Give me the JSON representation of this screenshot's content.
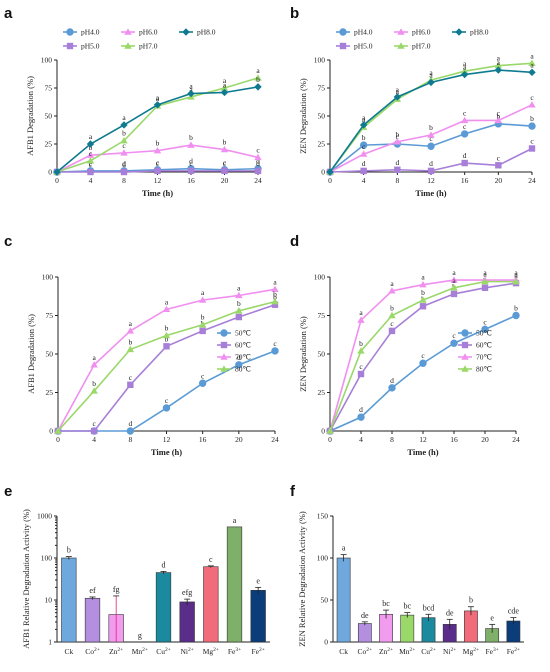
{
  "colors": {
    "pH4.0": "#5b9bd5",
    "pH5.0": "#a77fd8",
    "pH6.0": "#f08ff0",
    "pH7.0": "#9ad86a",
    "pH8.0": "#0f7a8f",
    "50C": "#5b9bd5",
    "60C": "#a77fd8",
    "70C": "#f08ff0",
    "80C": "#9ad86a"
  },
  "chart_data": [
    {
      "panel": "a",
      "type": "line",
      "ylabel": "AFB1 Degradation (%)",
      "xlabel": "Time (h)",
      "x": [
        0,
        4,
        8,
        12,
        16,
        20,
        24
      ],
      "xlim": [
        0,
        24
      ],
      "ylim": [
        0,
        100
      ],
      "xticks": [
        "0",
        "4",
        "8",
        "12",
        "16",
        "20",
        "24"
      ],
      "yticks": [
        "0",
        "25",
        "50",
        "75",
        "100"
      ],
      "legend": "top",
      "series": [
        {
          "name": "pH4.0",
          "color_key": "pH4.0",
          "marker": "circle",
          "values": [
            0,
            1,
            1,
            2,
            3,
            2,
            3
          ],
          "letters": [
            "",
            "c",
            "d",
            "c",
            "d",
            "c",
            "d"
          ]
        },
        {
          "name": "pH5.0",
          "color_key": "pH5.0",
          "marker": "square",
          "values": [
            0,
            0,
            0,
            1,
            1,
            1,
            1
          ],
          "letters": [
            "",
            "c",
            "d",
            "c",
            "c",
            "c",
            "d"
          ]
        },
        {
          "name": "pH6.0",
          "color_key": "pH6.0",
          "marker": "triangle",
          "values": [
            0,
            15,
            17,
            19,
            24,
            20,
            13
          ],
          "letters": [
            "",
            "b",
            "c",
            "b",
            "b",
            "b",
            "c"
          ]
        },
        {
          "name": "pH7.0",
          "color_key": "pH7.0",
          "marker": "triangle",
          "values": [
            0,
            10,
            28,
            59,
            67,
            75,
            84
          ],
          "letters": [
            "",
            "c",
            "b",
            "a",
            "a",
            "a",
            "a"
          ]
        },
        {
          "name": "pH8.0",
          "color_key": "pH8.0",
          "marker": "diamond",
          "values": [
            0,
            25,
            42,
            60,
            70,
            71,
            76
          ],
          "letters": [
            "",
            "a",
            "a",
            "a",
            "a",
            "a",
            "b"
          ]
        }
      ]
    },
    {
      "panel": "b",
      "type": "line",
      "ylabel": "ZEN Degradation (%)",
      "xlabel": "Time (h)",
      "x": [
        0,
        4,
        8,
        12,
        16,
        20,
        24
      ],
      "xlim": [
        0,
        24
      ],
      "ylim": [
        0,
        100
      ],
      "xticks": [
        "0",
        "4",
        "8",
        "12",
        "16",
        "20",
        "24"
      ],
      "yticks": [
        "0",
        "25",
        "50",
        "75",
        "100"
      ],
      "legend": "top",
      "series": [
        {
          "name": "pH4.0",
          "color_key": "pH4.0",
          "marker": "circle",
          "values": [
            0,
            24,
            25,
            23,
            34,
            43,
            41
          ],
          "letters": [
            "",
            "b",
            "c",
            "c",
            "c",
            "b",
            "b"
          ]
        },
        {
          "name": "pH5.0",
          "color_key": "pH5.0",
          "marker": "square",
          "values": [
            0,
            1,
            2,
            1,
            8,
            6,
            21
          ],
          "letters": [
            "",
            "d",
            "d",
            "d",
            "d",
            "c",
            "c"
          ]
        },
        {
          "name": "pH6.0",
          "color_key": "pH6.0",
          "marker": "triangle",
          "values": [
            0,
            16,
            27,
            33,
            46,
            46,
            60
          ],
          "letters": [
            "",
            "c",
            "b",
            "b",
            "c",
            "c",
            "c"
          ]
        },
        {
          "name": "pH7.0",
          "color_key": "pH7.0",
          "marker": "triangle",
          "values": [
            0,
            40,
            65,
            82,
            90,
            95,
            97
          ],
          "letters": [
            "",
            "a",
            "a",
            "a",
            "a",
            "a",
            "a"
          ]
        },
        {
          "name": "pH8.0",
          "color_key": "pH8.0",
          "marker": "diamond",
          "values": [
            0,
            42,
            67,
            80,
            87,
            91,
            89
          ],
          "letters": [
            "",
            "a",
            "a",
            "a",
            "a",
            "a",
            "a"
          ]
        }
      ]
    },
    {
      "panel": "c",
      "type": "line",
      "ylabel": "AFB1 Degradation (%)",
      "xlabel": "Time (h)",
      "x": [
        0,
        4,
        8,
        12,
        16,
        20,
        24
      ],
      "xlim": [
        0,
        24
      ],
      "ylim": [
        0,
        100
      ],
      "xticks": [
        "0",
        "4",
        "8",
        "12",
        "16",
        "20",
        "24"
      ],
      "yticks": [
        "0",
        "25",
        "50",
        "75",
        "100"
      ],
      "legend": "right",
      "series": [
        {
          "name": "50℃",
          "color_key": "50C",
          "marker": "circle",
          "values": [
            0,
            0,
            0,
            15,
            31,
            43,
            52
          ],
          "letters": [
            "",
            "",
            "d",
            "c",
            "c",
            "d",
            "c"
          ]
        },
        {
          "name": "60℃",
          "color_key": "60C",
          "marker": "square",
          "values": [
            0,
            0,
            30,
            55,
            65,
            74,
            82
          ],
          "letters": [
            "",
            "c",
            "c",
            "b",
            "b",
            "c",
            "b"
          ]
        },
        {
          "name": "70℃",
          "color_key": "70C",
          "marker": "triangle",
          "values": [
            0,
            43,
            65,
            79,
            85,
            88,
            92
          ],
          "letters": [
            "",
            "a",
            "a",
            "a",
            "a",
            "a",
            "a"
          ]
        },
        {
          "name": "80℃",
          "color_key": "80C",
          "marker": "triangle",
          "values": [
            0,
            26,
            53,
            62,
            69,
            78,
            84
          ],
          "letters": [
            "",
            "b",
            "b",
            "b",
            "b",
            "b",
            "b"
          ]
        }
      ]
    },
    {
      "panel": "d",
      "type": "line",
      "ylabel": "ZEN Degradation (%)",
      "xlabel": "Time (h)",
      "x": [
        0,
        4,
        8,
        12,
        16,
        20,
        24
      ],
      "xlim": [
        0,
        24
      ],
      "ylim": [
        0,
        100
      ],
      "xticks": [
        "0",
        "4",
        "8",
        "12",
        "16",
        "20",
        "24"
      ],
      "yticks": [
        "0",
        "25",
        "50",
        "75",
        "100"
      ],
      "legend": "right",
      "series": [
        {
          "name": "50℃",
          "color_key": "50C",
          "marker": "circle",
          "values": [
            0,
            9,
            28,
            44,
            57,
            66,
            75
          ],
          "letters": [
            "",
            "d",
            "d",
            "c",
            "c",
            "c",
            "b"
          ]
        },
        {
          "name": "60℃",
          "color_key": "60C",
          "marker": "square",
          "values": [
            0,
            37,
            65,
            81,
            89,
            93,
            96
          ],
          "letters": [
            "",
            "c",
            "c",
            "b",
            "b",
            "b",
            "a"
          ]
        },
        {
          "name": "70℃",
          "color_key": "70C",
          "marker": "triangle",
          "values": [
            0,
            72,
            91,
            95,
            98,
            98,
            98
          ],
          "letters": [
            "",
            "a",
            "a",
            "a",
            "a",
            "a",
            "a"
          ]
        },
        {
          "name": "80℃",
          "color_key": "80C",
          "marker": "triangle",
          "values": [
            0,
            52,
            75,
            85,
            93,
            97,
            97
          ],
          "letters": [
            "",
            "b",
            "b",
            "b",
            "a",
            "a",
            "a"
          ]
        }
      ]
    },
    {
      "panel": "e",
      "type": "bar",
      "scale": "log",
      "ylabel": "AFB1 Relative Degradation Activity (%)",
      "ylim": [
        1,
        1000
      ],
      "yticks": [
        "1",
        "10",
        "100",
        "1000"
      ],
      "categories": [
        "Ck",
        "Co2+",
        "Zn2+",
        "Mn2+",
        "Cu2+",
        "Ni2+",
        "Mg2+",
        "Fe3+",
        "Fe2+"
      ],
      "category_labels": [
        {
          "base": "Ck",
          "sup": ""
        },
        {
          "base": "Co",
          "sup": "2+"
        },
        {
          "base": "Zn",
          "sup": "2+"
        },
        {
          "base": "Mn",
          "sup": "2+"
        },
        {
          "base": "Cu",
          "sup": "2+"
        },
        {
          "base": "Ni",
          "sup": "2+"
        },
        {
          "base": "Mg",
          "sup": "2+"
        },
        {
          "base": "Fe",
          "sup": "3+"
        },
        {
          "base": "Fe",
          "sup": "2+"
        }
      ],
      "values": [
        100,
        11,
        4.5,
        1,
        45,
        9,
        62,
        550,
        17
      ],
      "errors": [
        8,
        0.8,
        8,
        0,
        3,
        1.5,
        3,
        0,
        3
      ],
      "letters": [
        "b",
        "ef",
        "fg",
        "g",
        "d",
        "efg",
        "c",
        "a",
        "e"
      ],
      "bar_colors": [
        "#6fa8dc",
        "#b48fe0",
        "#f29cf0",
        "#9ad86a",
        "#1b8a9e",
        "#5a2d8a",
        "#f26b7a",
        "#7fb069",
        "#0b3d7a"
      ]
    },
    {
      "panel": "f",
      "type": "bar",
      "ylabel": "ZEN Relative Degradation Activity (%)",
      "ylim": [
        0,
        150
      ],
      "yticks": [
        "0",
        "50",
        "100",
        "150"
      ],
      "categories": [
        "Ck",
        "Co2+",
        "Zn2+",
        "Mn2+",
        "Cu2+",
        "Ni2+",
        "Mg2+",
        "Fe3+",
        "Fe2+"
      ],
      "category_labels": [
        {
          "base": "Ck",
          "sup": ""
        },
        {
          "base": "Co",
          "sup": "2+"
        },
        {
          "base": "Zn",
          "sup": "2+"
        },
        {
          "base": "Mn",
          "sup": "2+"
        },
        {
          "base": "Cu",
          "sup": "2+"
        },
        {
          "base": "Ni",
          "sup": "2+"
        },
        {
          "base": "Mg",
          "sup": "2+"
        },
        {
          "base": "Fe",
          "sup": "3+"
        },
        {
          "base": "Fe",
          "sup": "2+"
        }
      ],
      "values": [
        100,
        22,
        33,
        32,
        29,
        21,
        37,
        16,
        25
      ],
      "errors": [
        4,
        2,
        5,
        3,
        4,
        6,
        5,
        5,
        4
      ],
      "letters": [
        "a",
        "de",
        "bc",
        "bc",
        "bcd",
        "de",
        "b",
        "e",
        "cde"
      ],
      "bar_colors": [
        "#6fa8dc",
        "#b48fe0",
        "#f29cf0",
        "#9ad86a",
        "#1b8a9e",
        "#5a2d8a",
        "#f26b7a",
        "#7fb069",
        "#0b3d7a"
      ]
    }
  ]
}
